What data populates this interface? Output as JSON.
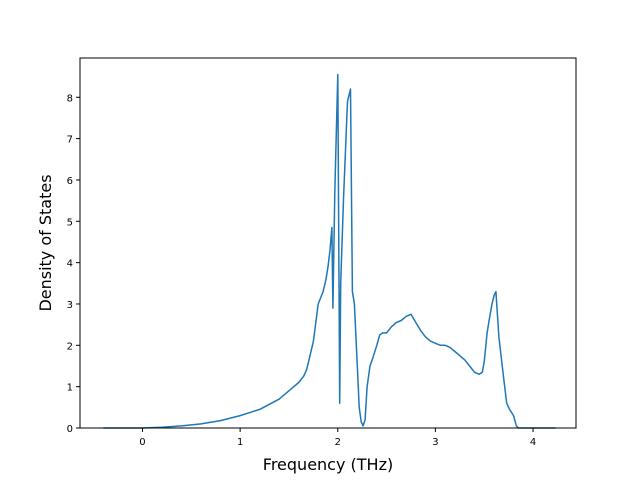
{
  "chart_data": {
    "type": "line",
    "title": "",
    "xlabel": "Frequency (THz)",
    "ylabel": "Density of States",
    "xlim": [
      -0.64,
      4.44
    ],
    "ylim": [
      0,
      8.95
    ],
    "xticks": [
      0,
      1,
      2,
      3,
      4
    ],
    "yticks": [
      0,
      1,
      2,
      3,
      4,
      5,
      6,
      7,
      8
    ],
    "grid": false,
    "legend": "none",
    "series": [
      {
        "color": "#1f77b4",
        "x": [
          -0.4,
          -0.2,
          0.0,
          0.2,
          0.4,
          0.6,
          0.8,
          1.0,
          1.2,
          1.4,
          1.5,
          1.6,
          1.65,
          1.68,
          1.7,
          1.75,
          1.8,
          1.85,
          1.88,
          1.9,
          1.92,
          1.94,
          1.95,
          1.97,
          2.0,
          2.02,
          2.03,
          2.06,
          2.1,
          2.13,
          2.15,
          2.17,
          2.2,
          2.22,
          2.24,
          2.26,
          2.28,
          2.3,
          2.33,
          2.36,
          2.4,
          2.43,
          2.46,
          2.5,
          2.55,
          2.6,
          2.65,
          2.7,
          2.75,
          2.8,
          2.85,
          2.9,
          2.95,
          3.0,
          3.05,
          3.1,
          3.15,
          3.2,
          3.25,
          3.3,
          3.35,
          3.4,
          3.45,
          3.48,
          3.5,
          3.53,
          3.55,
          3.58,
          3.6,
          3.62,
          3.65,
          3.7,
          3.73,
          3.76,
          3.8,
          3.83,
          3.85,
          3.9,
          4.0,
          4.1,
          4.23
        ],
        "y": [
          0,
          0,
          0,
          0.02,
          0.05,
          0.1,
          0.18,
          0.3,
          0.45,
          0.7,
          0.9,
          1.1,
          1.25,
          1.4,
          1.6,
          2.1,
          3.0,
          3.3,
          3.6,
          3.9,
          4.3,
          4.85,
          2.9,
          5.7,
          8.55,
          0.6,
          3.5,
          5.6,
          7.9,
          8.2,
          3.3,
          3.0,
          1.5,
          0.5,
          0.15,
          0.05,
          0.2,
          1.0,
          1.5,
          1.7,
          2.0,
          2.25,
          2.3,
          2.3,
          2.45,
          2.55,
          2.6,
          2.7,
          2.75,
          2.55,
          2.35,
          2.2,
          2.1,
          2.05,
          2.0,
          2.0,
          1.95,
          1.85,
          1.75,
          1.65,
          1.5,
          1.35,
          1.3,
          1.35,
          1.6,
          2.3,
          2.6,
          3.0,
          3.2,
          3.3,
          2.2,
          1.2,
          0.6,
          0.45,
          0.3,
          0.05,
          0,
          0,
          0,
          0,
          0
        ]
      }
    ]
  }
}
